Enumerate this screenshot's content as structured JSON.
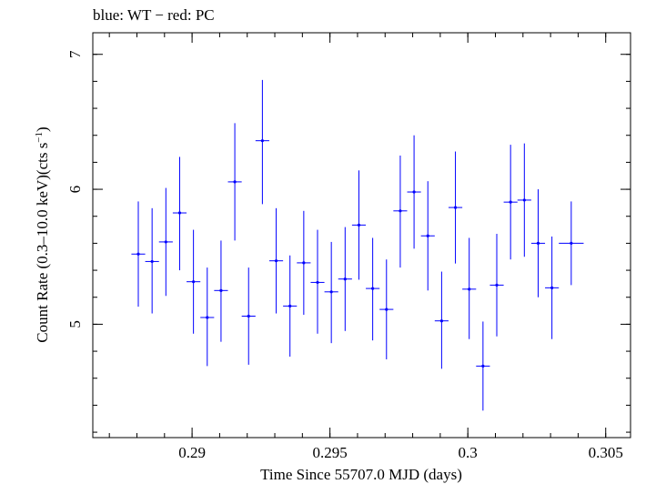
{
  "chart_data": {
    "type": "scatter",
    "title": "blue: WT − red: PC",
    "xlabel": "Time Since 55707.0 MJD (days)",
    "ylabel_main": "Count Rate (0.3–10.0 keV)(cts s",
    "ylabel_sup": "−1",
    "ylabel_close": ")",
    "xlim": [
      0.2864,
      0.3059
    ],
    "ylim": [
      4.16,
      7.16
    ],
    "grid": false,
    "x_major_ticks": [
      0.29,
      0.295,
      0.3,
      0.305
    ],
    "x_tick_labels": [
      "0.29",
      "0.295",
      "0.3",
      "0.305"
    ],
    "x_minor_step": 0.001,
    "y_major_ticks": [
      5,
      6,
      7
    ],
    "y_tick_labels": [
      "5",
      "6",
      "7"
    ],
    "y_minor_step": 0.2,
    "series": [
      {
        "color": "#0000ff",
        "xerr": 0.00025,
        "points": [
          {
            "x": 0.28805,
            "y": 5.52,
            "lo": 5.13,
            "hi": 5.91
          },
          {
            "x": 0.28855,
            "y": 5.465,
            "lo": 5.08,
            "hi": 5.86
          },
          {
            "x": 0.28905,
            "y": 5.61,
            "lo": 5.21,
            "hi": 6.01
          },
          {
            "x": 0.28955,
            "y": 5.825,
            "lo": 5.4,
            "hi": 6.24
          },
          {
            "x": 0.29005,
            "y": 5.315,
            "lo": 4.93,
            "hi": 5.7
          },
          {
            "x": 0.29055,
            "y": 5.05,
            "lo": 4.69,
            "hi": 5.42
          },
          {
            "x": 0.29105,
            "y": 5.25,
            "lo": 4.87,
            "hi": 5.62
          },
          {
            "x": 0.29155,
            "y": 6.055,
            "lo": 5.62,
            "hi": 6.49
          },
          {
            "x": 0.29205,
            "y": 5.06,
            "lo": 4.7,
            "hi": 5.42
          },
          {
            "x": 0.29255,
            "y": 6.36,
            "lo": 5.89,
            "hi": 6.81
          },
          {
            "x": 0.29305,
            "y": 5.47,
            "lo": 5.08,
            "hi": 5.86
          },
          {
            "x": 0.29355,
            "y": 5.135,
            "lo": 4.76,
            "hi": 5.51
          },
          {
            "x": 0.29405,
            "y": 5.455,
            "lo": 5.07,
            "hi": 5.84
          },
          {
            "x": 0.29455,
            "y": 5.31,
            "lo": 4.93,
            "hi": 5.7
          },
          {
            "x": 0.29505,
            "y": 5.24,
            "lo": 4.86,
            "hi": 5.61
          },
          {
            "x": 0.29555,
            "y": 5.335,
            "lo": 4.95,
            "hi": 5.72
          },
          {
            "x": 0.29605,
            "y": 5.735,
            "lo": 5.33,
            "hi": 6.14
          },
          {
            "x": 0.29655,
            "y": 5.265,
            "lo": 4.88,
            "hi": 5.64
          },
          {
            "x": 0.29705,
            "y": 5.11,
            "lo": 4.74,
            "hi": 5.48
          },
          {
            "x": 0.29755,
            "y": 5.84,
            "lo": 5.42,
            "hi": 6.25
          },
          {
            "x": 0.29805,
            "y": 5.98,
            "lo": 5.56,
            "hi": 6.4
          },
          {
            "x": 0.29855,
            "y": 5.655,
            "lo": 5.25,
            "hi": 6.06
          },
          {
            "x": 0.29905,
            "y": 5.025,
            "lo": 4.67,
            "hi": 5.39
          },
          {
            "x": 0.29955,
            "y": 5.865,
            "lo": 5.45,
            "hi": 6.28
          },
          {
            "x": 0.30005,
            "y": 5.26,
            "lo": 4.89,
            "hi": 5.64
          },
          {
            "x": 0.30055,
            "y": 4.69,
            "lo": 4.36,
            "hi": 5.02
          },
          {
            "x": 0.30105,
            "y": 5.29,
            "lo": 4.91,
            "hi": 5.67
          },
          {
            "x": 0.30155,
            "y": 5.905,
            "lo": 5.48,
            "hi": 6.33
          },
          {
            "x": 0.30205,
            "y": 5.92,
            "lo": 5.5,
            "hi": 6.34
          },
          {
            "x": 0.30255,
            "y": 5.6,
            "lo": 5.2,
            "hi": 6.0
          },
          {
            "x": 0.30305,
            "y": 5.27,
            "lo": 4.89,
            "hi": 5.65
          },
          {
            "x": 0.30375,
            "y": 5.6,
            "lo": 5.29,
            "hi": 5.91,
            "xerr": 0.00045
          }
        ]
      }
    ]
  }
}
